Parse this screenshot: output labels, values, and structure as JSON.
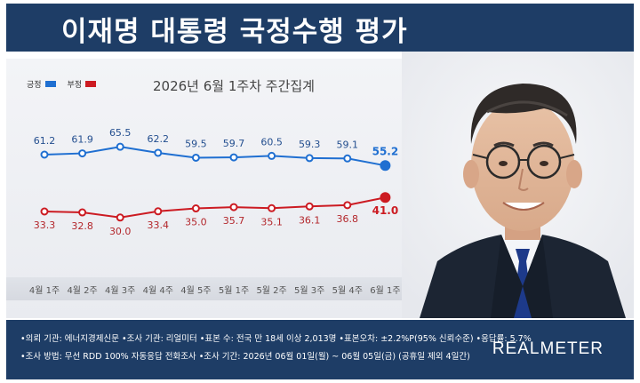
{
  "header": {
    "title": "이재명 대통령 국정수행 평가"
  },
  "chart_subtitle": "2026년 6월 1주차 주간집계",
  "legend": [
    {
      "label": "긍정",
      "color": "#1f6fd1"
    },
    {
      "label": "부정",
      "color": "#cc1b22"
    }
  ],
  "chart_data": {
    "type": "line",
    "categories": [
      "4월 1주",
      "4월 2주",
      "4월 3주",
      "4월 4주",
      "4월 5주",
      "5월 1주",
      "5월 2주",
      "5월 3주",
      "5월 4주",
      "6월 1주"
    ],
    "series": [
      {
        "name": "긍정",
        "color": "#1f6fd1",
        "values": [
          61.2,
          61.9,
          65.5,
          62.2,
          59.5,
          59.7,
          60.5,
          59.3,
          59.1,
          55.2
        ]
      },
      {
        "name": "부정",
        "color": "#cc1b22",
        "values": [
          33.3,
          32.8,
          30.0,
          33.4,
          35.0,
          35.7,
          35.1,
          36.1,
          36.8,
          41.0
        ]
      }
    ],
    "title": "2026년 6월 1주차 주간집계",
    "xlabel": "",
    "ylabel": "",
    "grid": false,
    "legend_position": "top-left"
  },
  "footer": {
    "line1": "•의뢰 기관: 에너지경제신문 •조사 기관: 리얼미터 •표본 수: 전국 만 18세 이상 2,013명 •표본오차: ±2.2%P(95% 신뢰수준) •응답률: 5.7%",
    "line2": "•조사 방법: 무선 RDD 100% 자동응답 전화조사 •조사 기간: 2026년 06월 01일(월) ~ 06월 05일(금) (공휴일 제외 4일간)",
    "logo": "REALMETER"
  }
}
